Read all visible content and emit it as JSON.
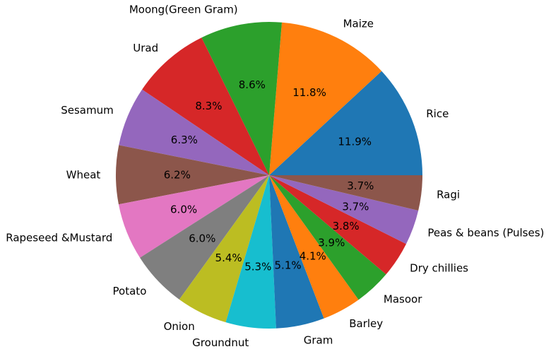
{
  "chart_data": {
    "type": "pie",
    "title": "",
    "legend": "none",
    "start_angle_deg": 0,
    "direction": "counterclockwise",
    "slices": [
      {
        "label": "Rice",
        "value": 11.9,
        "pct_label": "11.9%",
        "color": "#1f77b4"
      },
      {
        "label": "Maize",
        "value": 11.8,
        "pct_label": "11.8%",
        "color": "#ff7f0e"
      },
      {
        "label": "Moong(Green Gram)",
        "value": 8.6,
        "pct_label": "8.6%",
        "color": "#2ca02c"
      },
      {
        "label": "Urad",
        "value": 8.3,
        "pct_label": "8.3%",
        "color": "#d62728"
      },
      {
        "label": "Sesamum",
        "value": 6.3,
        "pct_label": "6.3%",
        "color": "#9467bd"
      },
      {
        "label": "Wheat",
        "value": 6.2,
        "pct_label": "6.2%",
        "color": "#8c564b"
      },
      {
        "label": "Rapeseed &Mustard",
        "value": 6.0,
        "pct_label": "6.0%",
        "color": "#e377c2"
      },
      {
        "label": "Potato",
        "value": 6.0,
        "pct_label": "6.0%",
        "color": "#7f7f7f"
      },
      {
        "label": "Onion",
        "value": 5.4,
        "pct_label": "5.4%",
        "color": "#bcbd22"
      },
      {
        "label": "Groundnut",
        "value": 5.3,
        "pct_label": "5.3%",
        "color": "#17becf"
      },
      {
        "label": "Gram",
        "value": 5.1,
        "pct_label": "5.1%",
        "color": "#1f77b4"
      },
      {
        "label": "Barley",
        "value": 4.1,
        "pct_label": "4.1%",
        "color": "#ff7f0e"
      },
      {
        "label": "Masoor",
        "value": 3.9,
        "pct_label": "3.9%",
        "color": "#2ca02c"
      },
      {
        "label": "Dry chillies",
        "value": 3.8,
        "pct_label": "3.8%",
        "color": "#d62728"
      },
      {
        "label": "Peas & beans (Pulses)",
        "value": 3.7,
        "pct_label": "3.7%",
        "color": "#9467bd"
      },
      {
        "label": "Ragi",
        "value": 3.7,
        "pct_label": "3.7%",
        "color": "#8c564b"
      }
    ]
  }
}
